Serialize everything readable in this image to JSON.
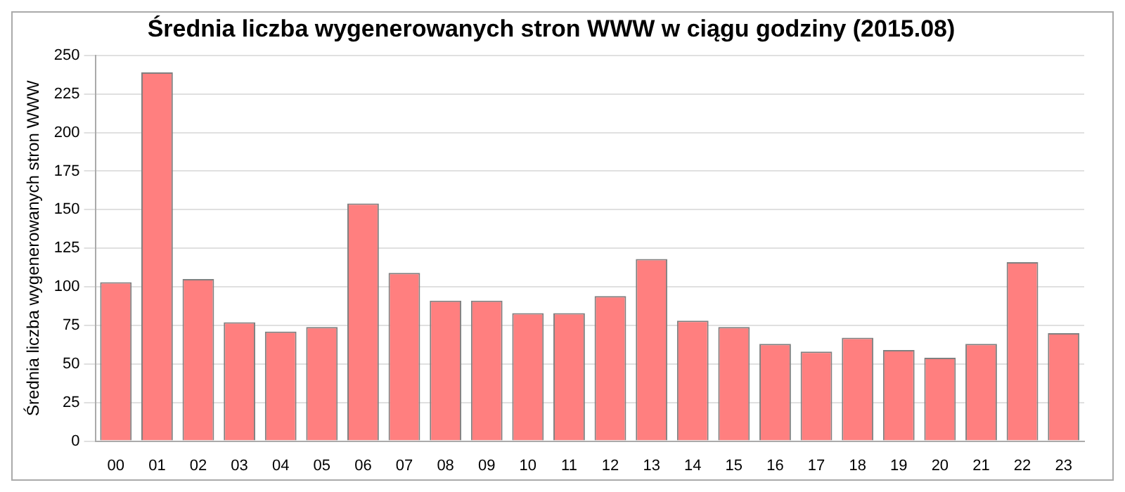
{
  "chart_data": {
    "type": "bar",
    "title": "Średnia liczba wygenerowanych stron WWW w ciągu godziny (2015.08)",
    "ylabel": "Średnia liczba wygenerowanych stron WWW",
    "categories": [
      "00",
      "01",
      "02",
      "03",
      "04",
      "05",
      "06",
      "07",
      "08",
      "09",
      "10",
      "11",
      "12",
      "13",
      "14",
      "15",
      "16",
      "17",
      "18",
      "19",
      "20",
      "21",
      "22",
      "23"
    ],
    "values": [
      103,
      239,
      105,
      77,
      71,
      74,
      154,
      109,
      91,
      91,
      83,
      83,
      94,
      118,
      78,
      74,
      63,
      58,
      67,
      59,
      54,
      63,
      116,
      70
    ],
    "color": "#ff7f7f",
    "ylim": [
      0,
      250
    ],
    "yticks": [
      0,
      25,
      50,
      75,
      100,
      125,
      150,
      175,
      200,
      225,
      250
    ],
    "grid": "y",
    "legend": false
  }
}
